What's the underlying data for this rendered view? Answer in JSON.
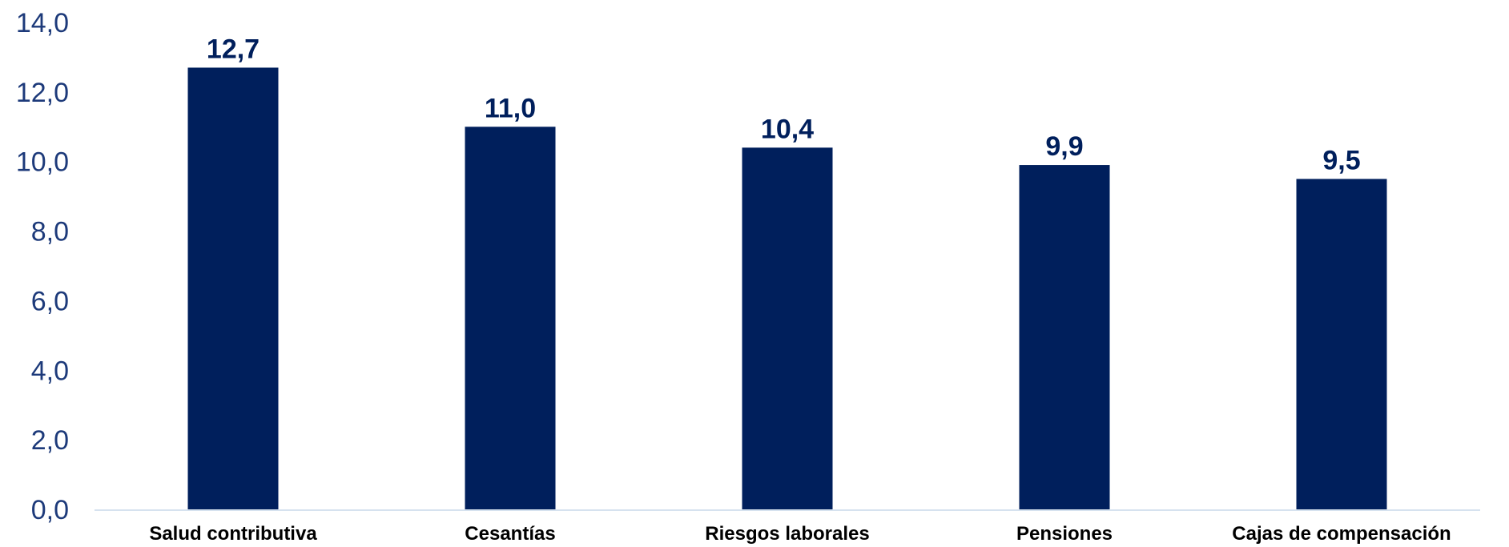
{
  "chart_data": {
    "type": "bar",
    "title": "",
    "xlabel": "",
    "ylabel": "",
    "categories": [
      "Salud contributiva",
      "Cesantías",
      "Riesgos laborales",
      "Pensiones",
      "Cajas de compensación"
    ],
    "values": [
      12.7,
      11.0,
      10.4,
      9.9,
      9.5
    ],
    "value_labels": [
      "12,7",
      "11,0",
      "10,4",
      "9,9",
      "9,5"
    ],
    "ylim": [
      0,
      14
    ],
    "y_ticks": [
      "0,0",
      "2,0",
      "4,0",
      "6,0",
      "8,0",
      "10,0",
      "12,0",
      "14,0"
    ],
    "grid": false,
    "legend": "none",
    "colors": {
      "bar": "#001f5c",
      "axis_text": "#1d3a7a",
      "category_text": "#000000",
      "baseline": "#d6e2ef"
    }
  }
}
